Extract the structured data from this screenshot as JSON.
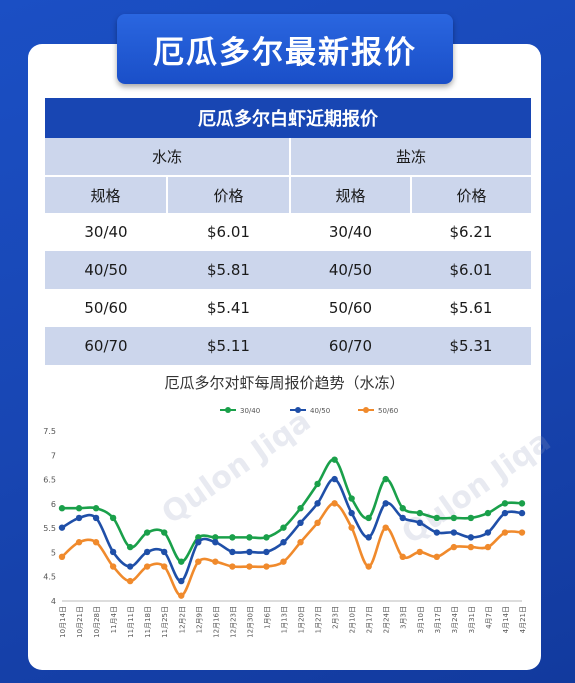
{
  "header": {
    "title": "厄瓜多尔最新报价"
  },
  "table": {
    "title": "厄瓜多尔白虾近期报价",
    "groups": [
      "水冻",
      "盐冻"
    ],
    "col_spec": "规格",
    "col_price": "价格",
    "rows": [
      {
        "spec_a": "30/40",
        "price_a": "$6.01",
        "spec_b": "30/40",
        "price_b": "$6.21"
      },
      {
        "spec_a": "40/50",
        "price_a": "$5.81",
        "spec_b": "40/50",
        "price_b": "$6.01"
      },
      {
        "spec_a": "50/60",
        "price_a": "$5.41",
        "spec_b": "50/60",
        "price_b": "$5.61"
      },
      {
        "spec_a": "60/70",
        "price_a": "$5.11",
        "spec_b": "60/70",
        "price_b": "$5.31"
      }
    ]
  },
  "watermark": "Qulon Jiqa",
  "chart_data": {
    "type": "line",
    "title": "厄瓜多尔对虾每周报价趋势（水冻）",
    "x": [
      "10月14日",
      "10月21日",
      "10月28日",
      "11月4日",
      "11月11日",
      "11月18日",
      "11月25日",
      "12月2日",
      "12月9日",
      "12月16日",
      "12月23日",
      "12月30日",
      "1月6日",
      "1月13日",
      "1月20日",
      "1月27日",
      "2月3日",
      "2月10日",
      "2月17日",
      "2月24日",
      "3月3日",
      "3月10日",
      "3月17日",
      "3月24日",
      "3月31日",
      "4月7日",
      "4月14日",
      "4月21日"
    ],
    "ylim": [
      4,
      7.5
    ],
    "yticks": [
      "4",
      "4.5",
      "5",
      "5.5",
      "6",
      "6.5",
      "7",
      "7.5"
    ],
    "legend_position": "top",
    "grid": false,
    "series": [
      {
        "name": "30/40",
        "color": "#1aa04a",
        "values": [
          5.91,
          5.91,
          5.91,
          5.71,
          5.11,
          5.41,
          5.41,
          4.81,
          5.31,
          5.31,
          5.31,
          5.31,
          5.31,
          5.51,
          5.91,
          6.41,
          6.91,
          6.11,
          5.71,
          6.51,
          5.91,
          5.81,
          5.71,
          5.71,
          5.71,
          5.81,
          6.01,
          6.01
        ]
      },
      {
        "name": "40/50",
        "color": "#1f4fa8",
        "values": [
          5.51,
          5.71,
          5.71,
          5.01,
          4.71,
          5.01,
          5.01,
          4.41,
          5.21,
          5.21,
          5.01,
          5.01,
          5.01,
          5.21,
          5.61,
          6.01,
          6.51,
          5.81,
          5.31,
          6.01,
          5.71,
          5.61,
          5.41,
          5.41,
          5.31,
          5.41,
          5.81,
          5.81
        ]
      },
      {
        "name": "50/60",
        "color": "#f08a2c",
        "values": [
          4.91,
          5.21,
          5.21,
          4.71,
          4.41,
          4.71,
          4.71,
          4.11,
          4.81,
          4.81,
          4.71,
          4.71,
          4.71,
          4.81,
          5.21,
          5.61,
          6.01,
          5.51,
          4.71,
          5.51,
          4.91,
          5.01,
          4.91,
          5.11,
          5.11,
          5.11,
          5.41,
          5.41
        ]
      }
    ]
  }
}
